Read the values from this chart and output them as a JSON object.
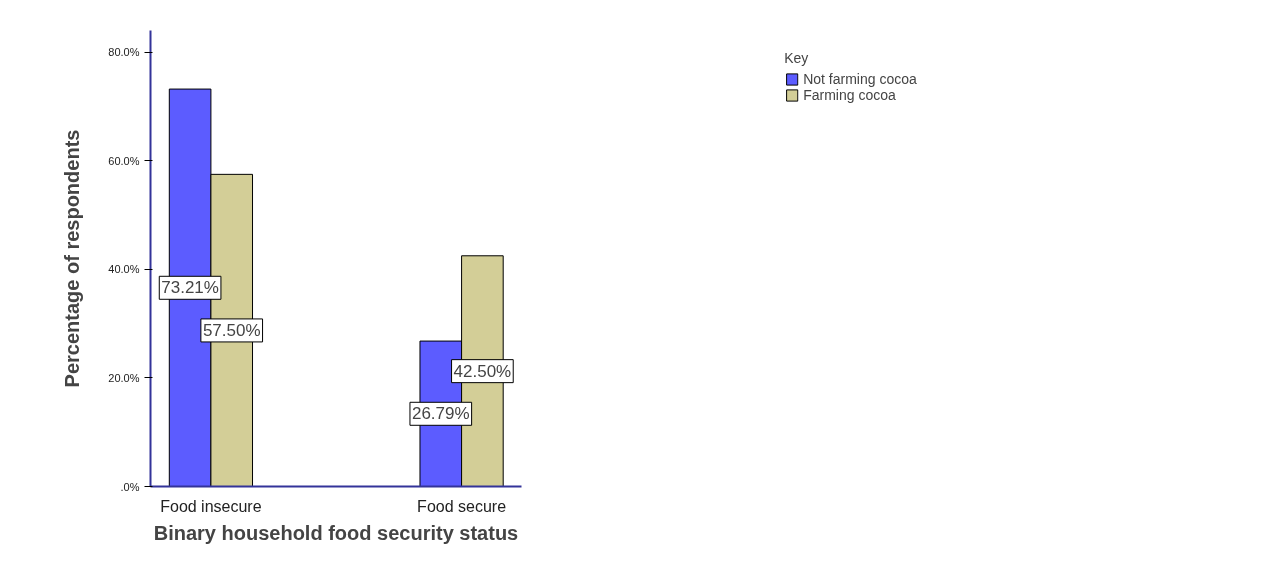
{
  "chart_data": {
    "type": "bar",
    "categories": [
      "Food insecure",
      "Food secure"
    ],
    "series": [
      {
        "name": "Not farming cocoa",
        "color": "#5c5cff",
        "values": [
          73.21,
          26.79
        ],
        "value_labels": [
          "73.21%",
          "26.79%"
        ]
      },
      {
        "name": "Farming cocoa",
        "color": "#d3ce97",
        "values": [
          57.5,
          42.5
        ],
        "value_labels": [
          "57.50%",
          "42.50%"
        ]
      }
    ],
    "xlabel": "Binary household food security status",
    "ylabel": "Percentage of respondents",
    "legend_title": "Key",
    "legend": "top right",
    "grid": false,
    "ylim": [
      0,
      84
    ],
    "yticks": [
      {
        "value": 0,
        "label": ".0%"
      },
      {
        "value": 20,
        "label": "20.0%"
      },
      {
        "value": 40,
        "label": "40.0%"
      },
      {
        "value": 60,
        "label": "60.0%"
      },
      {
        "value": 80,
        "label": "80.0%"
      }
    ]
  }
}
